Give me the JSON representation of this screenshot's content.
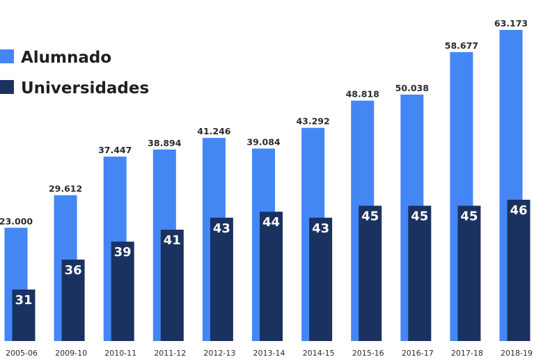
{
  "chart_data": {
    "type": "bar",
    "title": "",
    "xlabel": "",
    "ylabel": "",
    "grid": false,
    "legend_position": "top-left",
    "categories": [
      "2005-06",
      "2009-10",
      "2010-11",
      "2011-12",
      "2012-13",
      "2013-14",
      "2014-15",
      "2015-16",
      "2016-17",
      "2017-18",
      "2018-19"
    ],
    "series": [
      {
        "name": "Alumnado",
        "color": "#4486f4",
        "values": [
          23000,
          29612,
          37447,
          38894,
          41246,
          39084,
          43292,
          48818,
          50038,
          58677,
          63173
        ],
        "labels": [
          "23.000",
          "29.612",
          "37.447",
          "38.894",
          "41.246",
          "39.084",
          "43.292",
          "48.818",
          "50.038",
          "58.677",
          "63.173"
        ]
      },
      {
        "name": "Universidades",
        "color": "#1b3260",
        "values": [
          31,
          36,
          39,
          41,
          43,
          44,
          43,
          45,
          45,
          45,
          46
        ],
        "labels": [
          "31",
          "36",
          "39",
          "41",
          "43",
          "44",
          "43",
          "45",
          "45",
          "45",
          "46"
        ]
      }
    ]
  }
}
